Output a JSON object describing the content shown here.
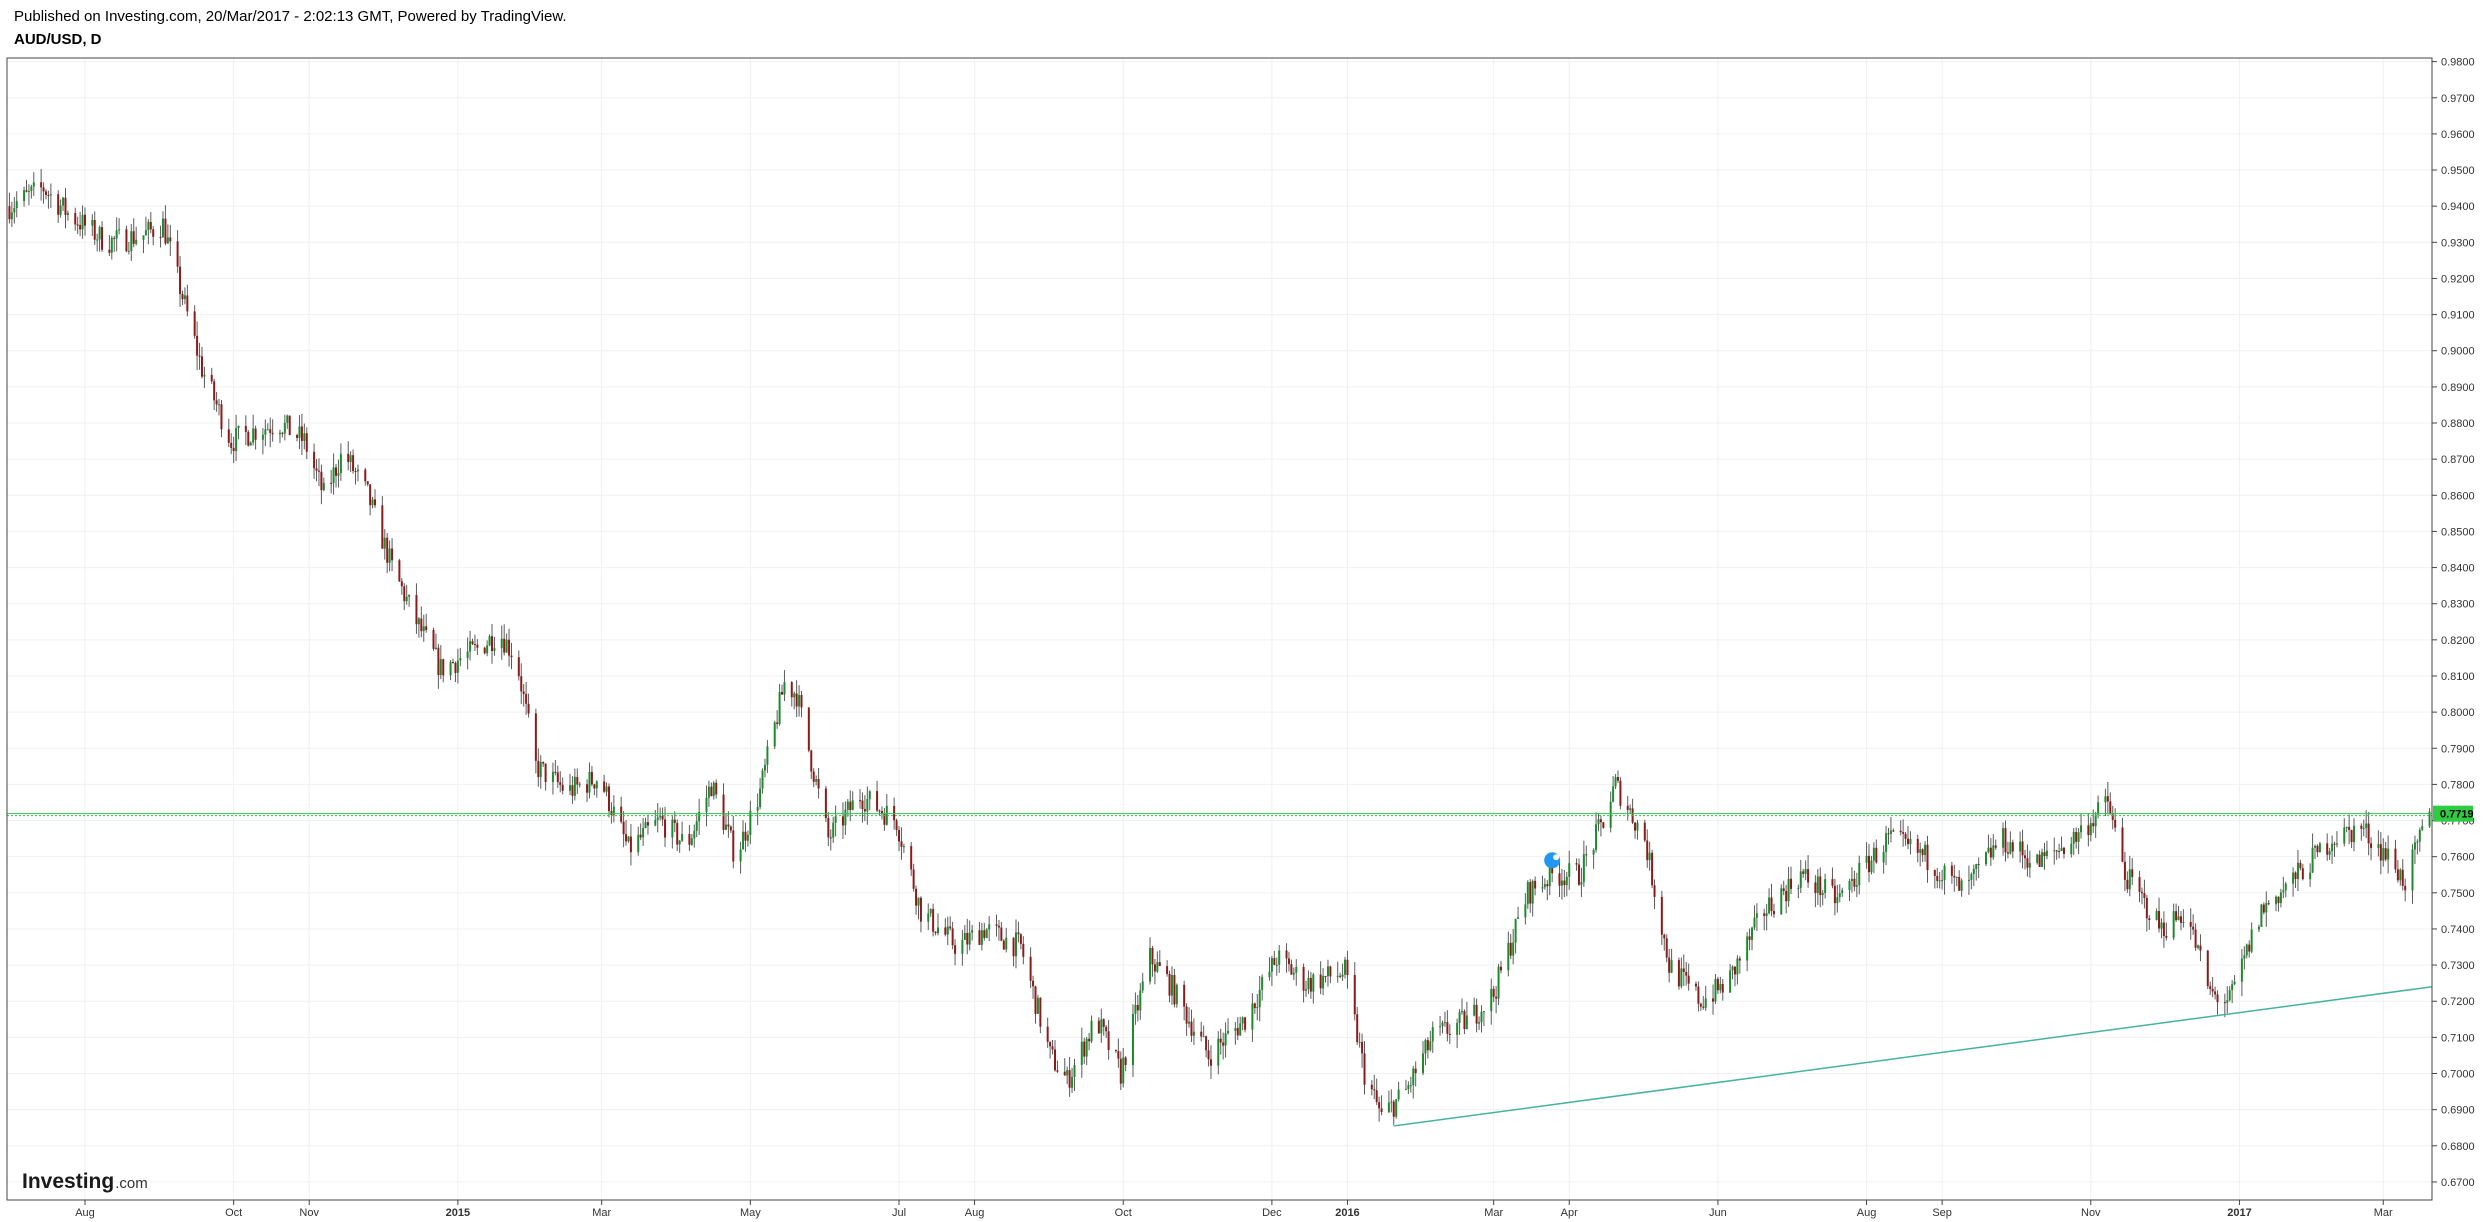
{
  "header": {
    "published": "Published on Investing.com, 20/Mar/2017 - 2:02:13 GMT, Powered by TradingView.",
    "symbol": "AUD/USD, D"
  },
  "logo": {
    "name": "Investing",
    "suffix": ".com"
  },
  "colors": {
    "up": "#1e8a2e",
    "down": "#8b1a1a",
    "wick": "#5a5a5a",
    "grid": "#f0f0f0",
    "price_line": "#36c14a",
    "price_tag": "#2ecc40",
    "trendline": "#45b39d",
    "marker": "#2196f3"
  },
  "chart_data": {
    "type": "candlestick",
    "title": "AUD/USD, D",
    "ylim": [
      0.665,
      0.981
    ],
    "y_ticks": [
      "0.9800",
      "0.9700",
      "0.9600",
      "0.9500",
      "0.9400",
      "0.9300",
      "0.9200",
      "0.9100",
      "0.9000",
      "0.8900",
      "0.8800",
      "0.8700",
      "0.8600",
      "0.8500",
      "0.8400",
      "0.8300",
      "0.8200",
      "0.8100",
      "0.8000",
      "0.7900",
      "0.7800",
      "0.7700",
      "0.7600",
      "0.7500",
      "0.7400",
      "0.7300",
      "0.7200",
      "0.7100",
      "0.7000",
      "0.6900",
      "0.6800",
      "0.6700"
    ],
    "x_range": [
      "2014-06-30",
      "2017-03-21"
    ],
    "x_ticks": [
      {
        "label": "Aug",
        "date": "2014-08-01",
        "bold": false
      },
      {
        "label": "Oct",
        "date": "2014-10-01",
        "bold": false
      },
      {
        "label": "Nov",
        "date": "2014-11-01",
        "bold": false
      },
      {
        "label": "2015",
        "date": "2015-01-01",
        "bold": true
      },
      {
        "label": "Mar",
        "date": "2015-03-01",
        "bold": false
      },
      {
        "label": "May",
        "date": "2015-05-01",
        "bold": false
      },
      {
        "label": "Jul",
        "date": "2015-07-01",
        "bold": false
      },
      {
        "label": "Aug",
        "date": "2015-08-01",
        "bold": false
      },
      {
        "label": "Oct",
        "date": "2015-10-01",
        "bold": false
      },
      {
        "label": "Dec",
        "date": "2015-12-01",
        "bold": false
      },
      {
        "label": "2016",
        "date": "2016-01-01",
        "bold": true
      },
      {
        "label": "Mar",
        "date": "2016-03-01",
        "bold": false
      },
      {
        "label": "Apr",
        "date": "2016-04-01",
        "bold": false
      },
      {
        "label": "Jun",
        "date": "2016-06-01",
        "bold": false
      },
      {
        "label": "Aug",
        "date": "2016-08-01",
        "bold": false
      },
      {
        "label": "Sep",
        "date": "2016-09-01",
        "bold": false
      },
      {
        "label": "Nov",
        "date": "2016-11-01",
        "bold": false
      },
      {
        "label": "2017",
        "date": "2017-01-01",
        "bold": true
      },
      {
        "label": "Mar",
        "date": "2017-03-01",
        "bold": false
      }
    ],
    "price_path": [
      [
        "2014-07-01",
        0.94
      ],
      [
        "2014-07-15",
        0.945
      ],
      [
        "2014-07-25",
        0.938
      ],
      [
        "2014-08-10",
        0.93
      ],
      [
        "2014-08-25",
        0.932
      ],
      [
        "2014-09-02",
        0.935
      ],
      [
        "2014-09-10",
        0.915
      ],
      [
        "2014-09-18",
        0.895
      ],
      [
        "2014-09-30",
        0.875
      ],
      [
        "2014-10-10",
        0.878
      ],
      [
        "2014-10-20",
        0.88
      ],
      [
        "2014-10-30",
        0.875
      ],
      [
        "2014-11-07",
        0.86
      ],
      [
        "2014-11-15",
        0.872
      ],
      [
        "2014-11-25",
        0.86
      ],
      [
        "2014-12-05",
        0.84
      ],
      [
        "2014-12-15",
        0.825
      ],
      [
        "2014-12-25",
        0.812
      ],
      [
        "2015-01-08",
        0.817
      ],
      [
        "2015-01-18",
        0.822
      ],
      [
        "2015-01-25",
        0.815
      ],
      [
        "2015-02-02",
        0.785
      ],
      [
        "2015-02-15",
        0.778
      ],
      [
        "2015-02-28",
        0.782
      ],
      [
        "2015-03-12",
        0.762
      ],
      [
        "2015-03-25",
        0.77
      ],
      [
        "2015-04-05",
        0.763
      ],
      [
        "2015-04-15",
        0.78
      ],
      [
        "2015-04-25",
        0.76
      ],
      [
        "2015-05-05",
        0.778
      ],
      [
        "2015-05-15",
        0.808
      ],
      [
        "2015-05-20",
        0.805
      ],
      [
        "2015-06-02",
        0.765
      ],
      [
        "2015-06-15",
        0.777
      ],
      [
        "2015-06-30",
        0.77
      ],
      [
        "2015-07-10",
        0.745
      ],
      [
        "2015-07-25",
        0.735
      ],
      [
        "2015-08-05",
        0.74
      ],
      [
        "2015-08-20",
        0.735
      ],
      [
        "2015-09-01",
        0.705
      ],
      [
        "2015-09-08",
        0.698
      ],
      [
        "2015-09-20",
        0.715
      ],
      [
        "2015-09-30",
        0.7
      ],
      [
        "2015-10-12",
        0.732
      ],
      [
        "2015-10-20",
        0.725
      ],
      [
        "2015-11-05",
        0.705
      ],
      [
        "2015-11-20",
        0.715
      ],
      [
        "2015-12-03",
        0.732
      ],
      [
        "2015-12-15",
        0.725
      ],
      [
        "2015-12-31",
        0.728
      ],
      [
        "2016-01-08",
        0.7
      ],
      [
        "2016-01-15",
        0.688
      ],
      [
        "2016-01-25",
        0.695
      ],
      [
        "2016-02-05",
        0.71
      ],
      [
        "2016-02-20",
        0.715
      ],
      [
        "2016-03-01",
        0.722
      ],
      [
        "2016-03-15",
        0.75
      ],
      [
        "2016-03-25",
        0.755
      ],
      [
        "2016-04-05",
        0.755
      ],
      [
        "2016-04-15",
        0.77
      ],
      [
        "2016-04-20",
        0.78
      ],
      [
        "2016-05-02",
        0.765
      ],
      [
        "2016-05-12",
        0.73
      ],
      [
        "2016-05-25",
        0.72
      ],
      [
        "2016-06-05",
        0.725
      ],
      [
        "2016-06-20",
        0.745
      ],
      [
        "2016-07-05",
        0.755
      ],
      [
        "2016-07-20",
        0.748
      ],
      [
        "2016-08-10",
        0.765
      ],
      [
        "2016-08-25",
        0.76
      ],
      [
        "2016-09-10",
        0.75
      ],
      [
        "2016-09-25",
        0.765
      ],
      [
        "2016-10-10",
        0.758
      ],
      [
        "2016-10-25",
        0.765
      ],
      [
        "2016-11-08",
        0.775
      ],
      [
        "2016-11-15",
        0.755
      ],
      [
        "2016-11-30",
        0.74
      ],
      [
        "2016-12-10",
        0.745
      ],
      [
        "2016-12-20",
        0.722
      ],
      [
        "2016-12-28",
        0.72
      ],
      [
        "2017-01-10",
        0.745
      ],
      [
        "2017-01-25",
        0.755
      ],
      [
        "2017-02-08",
        0.765
      ],
      [
        "2017-02-20",
        0.768
      ],
      [
        "2017-03-03",
        0.76
      ],
      [
        "2017-03-10",
        0.753
      ],
      [
        "2017-03-20",
        0.7719
      ]
    ],
    "candle_amplitude": 0.0045,
    "horizontal_line": {
      "value": 0.7719,
      "label": "0.7719"
    },
    "trendline": {
      "start": [
        "2016-01-20",
        0.6855
      ],
      "end": [
        "2017-03-21",
        0.724
      ]
    },
    "marker": {
      "date": "2016-03-25",
      "value": 0.759
    }
  }
}
